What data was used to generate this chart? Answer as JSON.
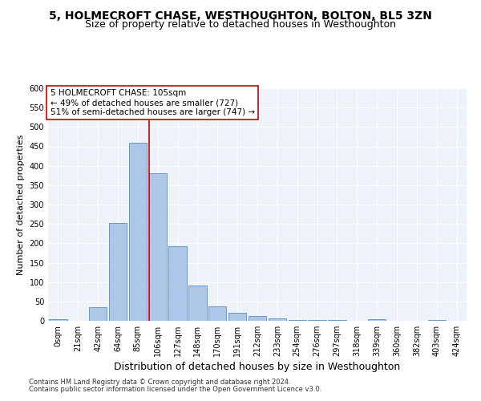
{
  "title": "5, HOLMECROFT CHASE, WESTHOUGHTON, BOLTON, BL5 3ZN",
  "subtitle": "Size of property relative to detached houses in Westhoughton",
  "xlabel": "Distribution of detached houses by size in Westhoughton",
  "ylabel": "Number of detached properties",
  "bin_labels": [
    "0sqm",
    "21sqm",
    "42sqm",
    "64sqm",
    "85sqm",
    "106sqm",
    "127sqm",
    "148sqm",
    "170sqm",
    "191sqm",
    "212sqm",
    "233sqm",
    "254sqm",
    "276sqm",
    "297sqm",
    "318sqm",
    "339sqm",
    "360sqm",
    "382sqm",
    "403sqm",
    "424sqm"
  ],
  "bar_values": [
    4,
    0,
    36,
    252,
    460,
    380,
    192,
    92,
    38,
    20,
    12,
    6,
    2,
    2,
    2,
    0,
    5,
    0,
    0,
    2,
    0
  ],
  "bar_color": "#aec6e8",
  "bar_edgecolor": "#5a8fc4",
  "vline_x": 5,
  "vline_color": "#cc0000",
  "ylim": [
    0,
    600
  ],
  "yticks": [
    0,
    50,
    100,
    150,
    200,
    250,
    300,
    350,
    400,
    450,
    500,
    550,
    600
  ],
  "annotation_title": "5 HOLMECROFT CHASE: 105sqm",
  "annotation_line1": "← 49% of detached houses are smaller (727)",
  "annotation_line2": "51% of semi-detached houses are larger (747) →",
  "annotation_box_color": "#ffffff",
  "annotation_box_edgecolor": "#cc0000",
  "footer1": "Contains HM Land Registry data © Crown copyright and database right 2024.",
  "footer2": "Contains public sector information licensed under the Open Government Licence v3.0.",
  "bg_color": "#eef2f9",
  "title_fontsize": 10,
  "subtitle_fontsize": 9,
  "xlabel_fontsize": 9,
  "ylabel_fontsize": 8,
  "tick_fontsize": 7,
  "annotation_fontsize": 7.5,
  "footer_fontsize": 6
}
